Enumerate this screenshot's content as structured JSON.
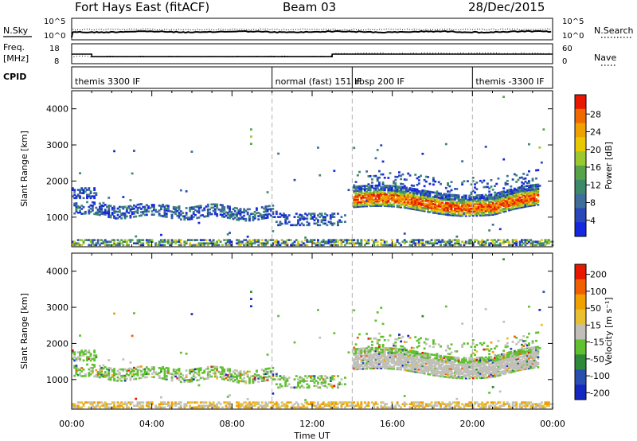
{
  "header": {
    "title": "Fort Hays East (fitACF)",
    "beam": "Beam 03",
    "date": "28/Dec/2015"
  },
  "top_panels": {
    "nsky_label": "N.Sky",
    "nsearch_label": "N.Search",
    "noise_ticks": [
      "10^5",
      "10^0"
    ],
    "freq_label": "Freq.",
    "freq_unit": "[MHz]",
    "freq_ticks": [
      "18",
      "8"
    ],
    "nave_label": "Nave",
    "nave_ticks": [
      "60",
      "0"
    ],
    "cpid_label": "CPID",
    "cpid_segments": [
      {
        "label": "themis 3300 IF",
        "start": 0.0,
        "end": 10.0
      },
      {
        "label": "normal (fast) 151 IF",
        "start": 10.0,
        "end": 14.0
      },
      {
        "label": "rbsp 200 IF",
        "start": 14.0,
        "end": 20.0
      },
      {
        "label": "themis -3300 IF",
        "start": 20.0,
        "end": 24.0
      }
    ]
  },
  "chart_data": [
    {
      "type": "heatmap",
      "name": "power",
      "ylabel": "Slant Range [km]",
      "xlabel": "Time UT",
      "x_range_hours": [
        0,
        24
      ],
      "y_range_km": [
        180,
        4500
      ],
      "y_ticks": [
        1000,
        2000,
        3000,
        4000
      ],
      "x_ticks": [
        "00:00",
        "04:00",
        "08:00",
        "12:00",
        "16:00",
        "20:00",
        "00:00"
      ],
      "colorbar_label": "Power [dB]",
      "colorbar_ticks": [
        "28",
        "24",
        "20",
        "16",
        "12",
        "8",
        "4"
      ],
      "colors": [
        "#1428e0",
        "#2a48b8",
        "#3f6e9a",
        "#3d8a6a",
        "#56a34a",
        "#9ac82e",
        "#e8c800",
        "#f0a000",
        "#f06a00",
        "#e81800"
      ],
      "mode_change_hours": [
        10,
        14,
        20
      ]
    },
    {
      "type": "heatmap",
      "name": "velocity",
      "ylabel": "Slant Range [km]",
      "xlabel": "Time UT",
      "x_range_hours": [
        0,
        24
      ],
      "y_range_km": [
        180,
        4500
      ],
      "y_ticks": [
        1000,
        2000,
        3000,
        4000
      ],
      "x_ticks": [
        "00:00",
        "04:00",
        "08:00",
        "12:00",
        "16:00",
        "20:00",
        "00:00"
      ],
      "colorbar_label": "Velocity [m s⁻¹]",
      "colorbar_ticks": [
        "200",
        "100",
        "50",
        "15",
        "-15",
        "-50",
        "-100",
        "-200"
      ],
      "colors": [
        "#1428c0",
        "#2850b0",
        "#2e8a3a",
        "#60c030",
        "#c0c0b8",
        "#e8c030",
        "#f0a000",
        "#f06000",
        "#e81800"
      ],
      "ground_scatter_color": "#c0c0b8",
      "mode_change_hours": [
        10,
        14,
        20
      ]
    }
  ]
}
